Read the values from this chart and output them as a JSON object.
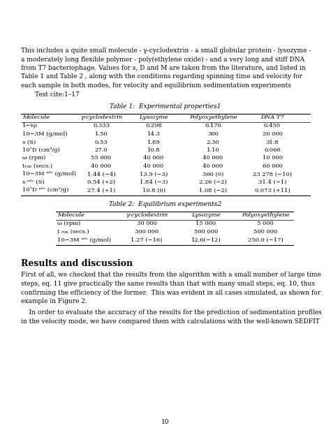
{
  "background_color": "#ffffff",
  "intro_text": [
    "This includes a quite small molecule - γ-cyclodextrin - a small globular protein - lysozyme -",
    "a moderately long flexible polymer - poly(ethylene oxide) - and a very long and stiff DNA",
    "from T7 bacteriophage. Values for s, D and M are taken from the literature, and listed in",
    "Table 1 and Table 2 , along with the conditions regarding spinning time and velocity for",
    "each sample in both modes, for velocity and equilibrium sedimentation experiments"
  ],
  "cite_text": "Test cite:",
  "cite_super": "1–17",
  "table1_title": "Table 1:  Experimental properties",
  "table1_title_super": "1",
  "table1_headers": [
    "Molecule",
    "γ-cyclodextrin",
    "Lysozyme",
    "Polyoxyethylene",
    "DNA T7"
  ],
  "table1_rows": [
    [
      "1−vρ",
      "0.333",
      "0.298",
      "0.170",
      "0.450"
    ],
    [
      "10−3M (g/mol)",
      "1.50",
      "14.3",
      "300",
      "26 000"
    ],
    [
      "s (S)",
      "0.53",
      "1.89",
      "2.30",
      "31.8"
    ],
    [
      "10⁷D (cm³/g)",
      "27.0",
      "10.8",
      "1.10",
      "0.066"
    ],
    [
      "ω (rpm)",
      "55 000",
      "40 000",
      "40 000",
      "10 000"
    ],
    [
      "tᵣᵤₙ (secs.)",
      "40 000",
      "40 000",
      "40 000",
      "60 000"
    ],
    [
      "10−3M ᵎᵃˡᶜ (g/mol)",
      "1.44 (−4)",
      "13.9 (−3)",
      "300 (0)",
      "23 278 (−10)"
    ],
    [
      "s ᵎᵃˡᶜ (S)",
      "0.54 (+2)",
      "1.84 (−3)",
      "2.26 (−2)",
      "31.4 (−1)"
    ],
    [
      "10⁷D ᵎᵃˡᶜ (cm³/g)",
      "27.4 (+1)",
      "10.8 (0)",
      "1.08 (−2)",
      "0.073 (+11)"
    ]
  ],
  "table2_title": "Table 2:  Equilibrium experiments",
  "table2_title_super": "2",
  "table2_headers": [
    "Molecule",
    "γ-cyclodextrin",
    "Lysozyme",
    "Polyoxyethylene"
  ],
  "table2_rows": [
    [
      "ω (rpm)",
      "30 000",
      "15 000",
      "5 000"
    ],
    [
      "t ᵣᵤₙ (secs.)",
      "300 000",
      "500 000",
      "500 000"
    ],
    [
      "10−3M ᵎᵃˡᶜ (g/mol)",
      "1.27 (−16)",
      "12.6(−12)",
      "250.0 (−17)"
    ]
  ],
  "section_title": "Results and discussion",
  "body_text_1": [
    "First of all, we checked that the results from the algorithm with a small number of large time",
    "steps, eq. 11 give practically the same results than that with many small steps, eq. 10, thus",
    "confirming the efficiency of the former.  This was evident in all cases simulated, as shown for",
    "example in Figure 2."
  ],
  "body_text_2": [
    "    In order to evaluate the accuracy of the results for the prediction of sedimentation profiles",
    "in the velocity mode, we have compared them with calculations with the well-known SEDFIT"
  ],
  "page_number": "10",
  "lm": 0.063,
  "rm": 0.937,
  "body_fs": 6.5,
  "table_fs": 6.0,
  "table_title_fs": 6.5,
  "section_fs": 9.0
}
